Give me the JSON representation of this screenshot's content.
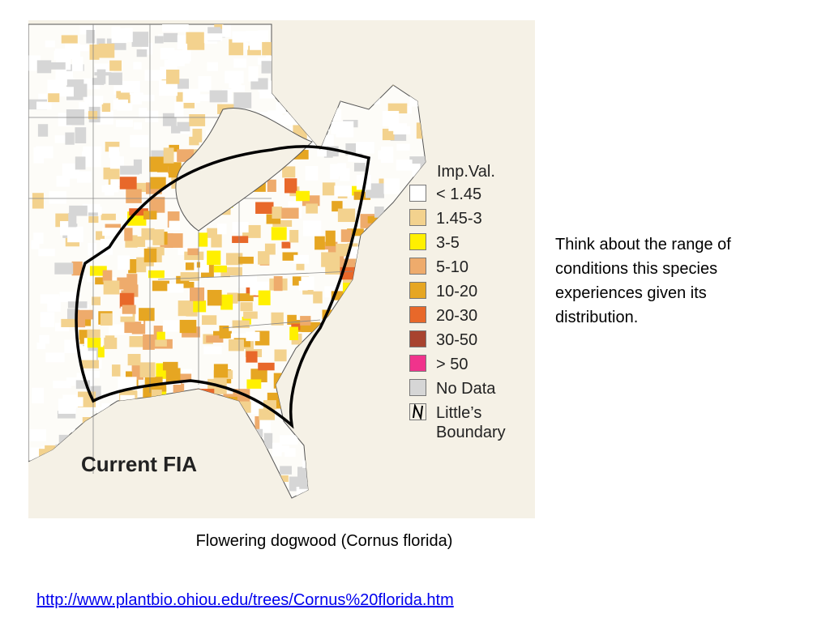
{
  "map": {
    "title": "Current FIA",
    "legend": {
      "title": "Imp.Val.",
      "items": [
        {
          "label": "< 1.45",
          "color": "#ffffff"
        },
        {
          "label": "1.45-3",
          "color": "#f3d28e"
        },
        {
          "label": "3-5",
          "color": "#fff000"
        },
        {
          "label": "5-10",
          "color": "#eeab6c"
        },
        {
          "label": "10-20",
          "color": "#e6a622"
        },
        {
          "label": "20-30",
          "color": "#e8682a"
        },
        {
          "label": "30-50",
          "color": "#a8432f"
        },
        {
          "label": "> 50",
          "color": "#f0338c"
        },
        {
          "label": "No Data",
          "color": "#d6d6d6"
        },
        {
          "label": "Little’s Boundary"
        }
      ]
    }
  },
  "note": "Think about the range of conditions this species experiences given its distribution.",
  "caption": "Flowering dogwood (Cornus florida)",
  "link": "http://www.plantbio.ohiou.edu/trees/Cornus%20florida.htm"
}
